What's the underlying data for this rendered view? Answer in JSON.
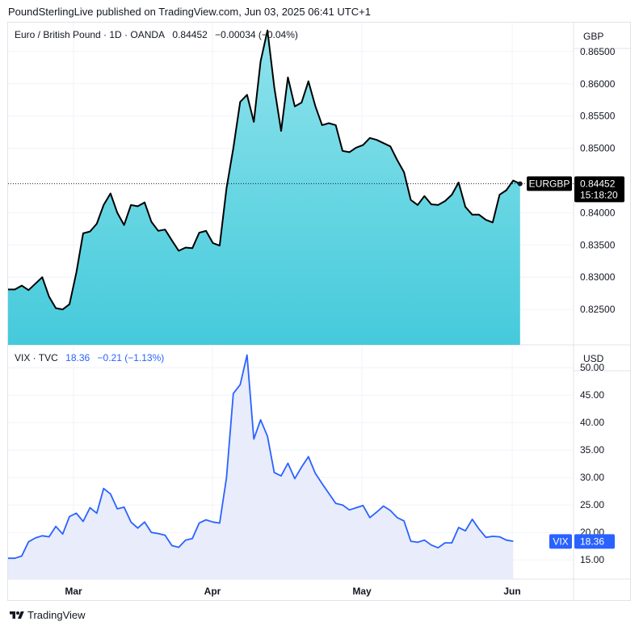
{
  "header": {
    "publisher": "PoundSterlingLive published on TradingView.com, Jun 03, 2025 06:41 UTC+1"
  },
  "eurgbp_legend": {
    "title": "Euro / British Pound · 1D · OANDA",
    "last": "0.84452",
    "change": "−0.00034 (−0.04%)"
  },
  "vix_legend": {
    "title": "VIX · TVC",
    "last": "18.36",
    "change": "−0.21 (−1.13%)"
  },
  "currencies": {
    "top": "GBP",
    "bottom": "USD"
  },
  "tags": {
    "eurgbp_symbol": "EURGBP",
    "eurgbp_price": "0.84452",
    "eurgbp_countdown": "15:18:20",
    "vix_symbol": "VIX",
    "vix_price": "18.36"
  },
  "footer": {
    "brand": "TradingView"
  },
  "colors": {
    "eurgbp_line": "#000000",
    "eurgbp_fill_top": "#8fe3ec",
    "eurgbp_fill_bottom": "#45cadb",
    "vix_line": "#2962ff",
    "vix_fill": "#e8ecfb",
    "tag_dark": "#000000",
    "tag_blue": "#2962ff"
  },
  "chart_data": [
    {
      "type": "area",
      "title": "Euro / British Pound · 1D · OANDA",
      "x_labels": [
        "Mar",
        "Apr",
        "May",
        "Jun"
      ],
      "y_ticks": [
        "0.86500",
        "0.86000",
        "0.85500",
        "0.85000",
        "0.84000",
        "0.83500",
        "0.83000",
        "0.82500"
      ],
      "ylim": [
        0.8195,
        0.8695
      ],
      "last_value": 0.84452,
      "series": [
        {
          "values": [
            0.8281,
            0.8281,
            0.8287,
            0.828,
            0.829,
            0.83,
            0.827,
            0.8252,
            0.825,
            0.8258,
            0.8307,
            0.8368,
            0.8371,
            0.8383,
            0.8412,
            0.843,
            0.84,
            0.8381,
            0.8412,
            0.841,
            0.8416,
            0.8386,
            0.8372,
            0.8374,
            0.8357,
            0.8341,
            0.8346,
            0.8345,
            0.8369,
            0.8372,
            0.8353,
            0.8349,
            0.8438,
            0.85,
            0.8572,
            0.8583,
            0.8541,
            0.8635,
            0.8683,
            0.8595,
            0.8527,
            0.861,
            0.8565,
            0.8571,
            0.8604,
            0.8566,
            0.8536,
            0.8539,
            0.8536,
            0.8496,
            0.8494,
            0.8501,
            0.8505,
            0.8516,
            0.8513,
            0.8508,
            0.8503,
            0.8482,
            0.8463,
            0.842,
            0.8412,
            0.8426,
            0.8413,
            0.8412,
            0.8418,
            0.8428,
            0.8447,
            0.8409,
            0.8397,
            0.8397,
            0.8389,
            0.8385,
            0.8428,
            0.8435,
            0.845,
            0.8445
          ]
        }
      ]
    },
    {
      "type": "area",
      "title": "VIX · TVC",
      "x_labels": [
        "Mar",
        "Apr",
        "May",
        "Jun"
      ],
      "y_ticks": [
        "50.00",
        "45.00",
        "40.00",
        "35.00",
        "30.00",
        "25.00",
        "20.00",
        "15.00"
      ],
      "ylim": [
        11.5,
        54
      ],
      "last_value": 18.36,
      "series": [
        {
          "values": [
            15.3,
            15.3,
            15.7,
            18.3,
            19.0,
            19.4,
            19.2,
            21.1,
            19.7,
            22.9,
            23.5,
            22.0,
            24.5,
            23.5,
            28.0,
            27.0,
            24.3,
            24.6,
            21.9,
            20.8,
            21.9,
            20.0,
            19.8,
            19.5,
            17.6,
            17.3,
            18.6,
            18.9,
            21.7,
            22.3,
            21.9,
            21.7,
            30.0,
            45.3,
            46.9,
            52.3,
            37.0,
            40.5,
            37.5,
            30.9,
            30.3,
            32.6,
            29.8,
            31.9,
            33.8,
            30.8,
            28.9,
            27.1,
            25.3,
            25.0,
            24.1,
            24.5,
            24.9,
            22.7,
            23.7,
            24.8,
            24.0,
            22.7,
            22.1,
            18.4,
            18.2,
            18.6,
            17.7,
            17.2,
            18.1,
            18.1,
            20.9,
            20.3,
            22.4,
            20.6,
            19.1,
            19.3,
            19.2,
            18.6,
            18.4
          ]
        }
      ]
    }
  ]
}
